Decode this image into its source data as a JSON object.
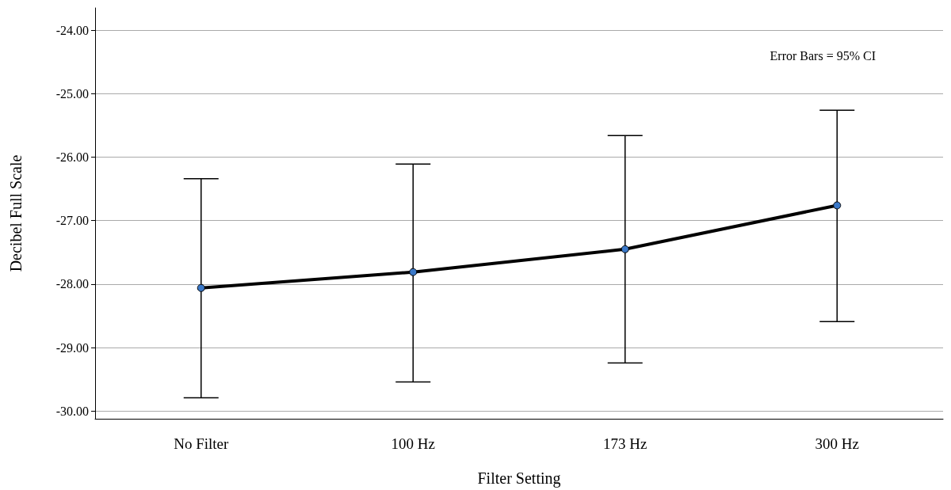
{
  "chart_data": {
    "type": "line",
    "xlabel": "Filter Setting",
    "ylabel": "Decibel Full Scale",
    "annotations": [
      "Error Bars = 95% CI"
    ],
    "categories": [
      "No Filter",
      "100 Hz",
      "173 Hz",
      "300 Hz"
    ],
    "series": [
      {
        "color": "#000000",
        "values": [
          -28.06,
          -27.81,
          -27.45,
          -26.76
        ],
        "errors": [
          [
            -29.79,
            -26.34
          ],
          [
            -29.54,
            -26.11
          ],
          [
            -29.24,
            -25.66
          ],
          [
            -28.59,
            -25.26
          ]
        ]
      }
    ],
    "ylim": [
      -30.12,
      -23.65
    ],
    "yticks": [
      {
        "value": -30,
        "label": "-30.00"
      },
      {
        "value": -29,
        "label": "-29.00"
      },
      {
        "value": -28,
        "label": "-28.00"
      },
      {
        "value": -27,
        "label": "-27.00"
      },
      {
        "value": -26,
        "label": "-26.00"
      },
      {
        "value": -25,
        "label": "-25.00"
      },
      {
        "value": -24,
        "label": "-24.00"
      }
    ],
    "grid": "y",
    "marker": "circle",
    "line_style": "solid"
  }
}
